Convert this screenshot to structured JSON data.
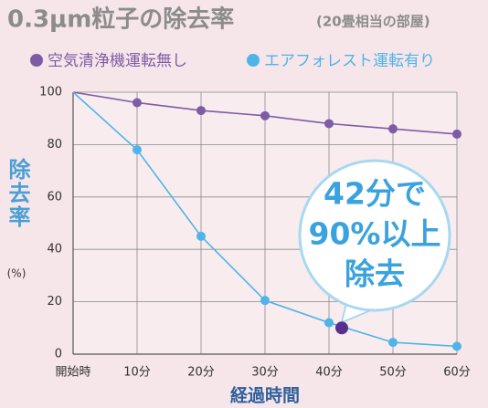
{
  "chart_data": {
    "type": "line",
    "title": "0.3μm粒子の除去率",
    "subtitle": "(20畳相当の部屋)",
    "x_label": "経過時間",
    "y_label": "除去率",
    "y_unit": "(%)",
    "x": [
      0,
      10,
      20,
      30,
      40,
      50,
      60
    ],
    "series": [
      {
        "name": "空気清浄機運転無し",
        "color": "#7d5ca6",
        "values": [
          100,
          96,
          93,
          91,
          88,
          86,
          84
        ]
      },
      {
        "name": "エアフォレスト運転有り",
        "color": "#4fb4e8",
        "values": [
          100,
          78,
          45,
          20.5,
          12,
          4.5,
          3
        ]
      }
    ],
    "xlim": [
      0,
      60
    ],
    "xticks": [
      {
        "value": 0,
        "label": "開始時"
      },
      {
        "value": 10,
        "label": "10分"
      },
      {
        "value": 20,
        "label": "20分"
      },
      {
        "value": 30,
        "label": "30分"
      },
      {
        "value": 40,
        "label": "40分"
      },
      {
        "value": 50,
        "label": "50分"
      },
      {
        "value": 60,
        "label": "60分"
      }
    ],
    "ylim": [
      0,
      100
    ],
    "yticks": [
      0,
      20,
      40,
      60,
      80,
      100
    ],
    "grid": true,
    "marker": {
      "x": 42,
      "y": 10,
      "color": "#5a2e8c"
    },
    "annotation": [
      "42分で",
      "90%以上",
      "除去"
    ]
  }
}
